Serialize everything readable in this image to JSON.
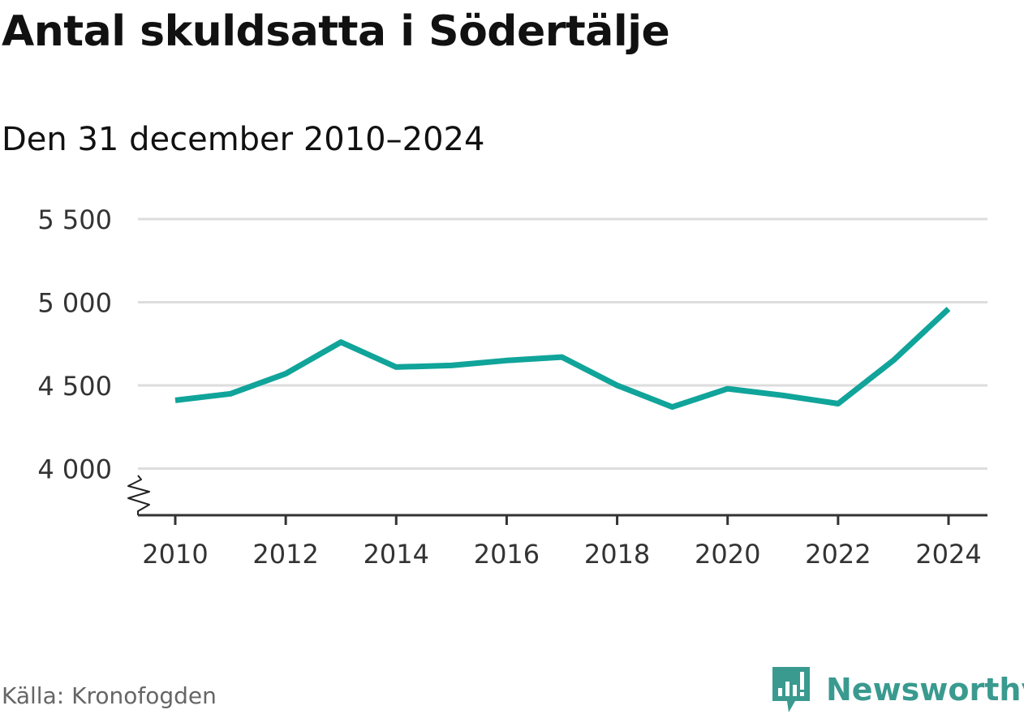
{
  "header": {
    "title": "Antal skuldsatta i Södertälje",
    "subtitle": "Den 31 december 2010–2024"
  },
  "footer": {
    "source": "Källa: Kronofogden",
    "brand": "Newsworthy"
  },
  "colors": {
    "line": "#10a49a",
    "grid": "#dddddd",
    "brand": "#3a9a8f"
  },
  "chart_data": {
    "type": "line",
    "title": "Antal skuldsatta i Södertälje",
    "subtitle": "Den 31 december 2010–2024",
    "xlabel": "",
    "ylabel": "",
    "x": [
      2010,
      2011,
      2012,
      2013,
      2014,
      2015,
      2016,
      2017,
      2018,
      2019,
      2020,
      2021,
      2022,
      2023,
      2024
    ],
    "series": [
      {
        "name": "Antal skuldsatta",
        "values": [
          4410,
          4450,
          4570,
          4760,
          4610,
          4620,
          4650,
          4670,
          4500,
          4370,
          4480,
          4440,
          4390,
          4650,
          4960
        ]
      }
    ],
    "ylim": [
      3720,
      5500
    ],
    "yticks": [
      4000,
      4500,
      5000,
      5500
    ],
    "ytick_labels": [
      "4 000",
      "4 500",
      "5 000",
      "5 500"
    ],
    "xticks": [
      2010,
      2012,
      2014,
      2016,
      2018,
      2020,
      2022,
      2024
    ],
    "xtick_labels": [
      "2010",
      "2012",
      "2014",
      "2016",
      "2018",
      "2020",
      "2022",
      "2024"
    ],
    "axis_break": true,
    "grid": true,
    "legend": "none"
  }
}
